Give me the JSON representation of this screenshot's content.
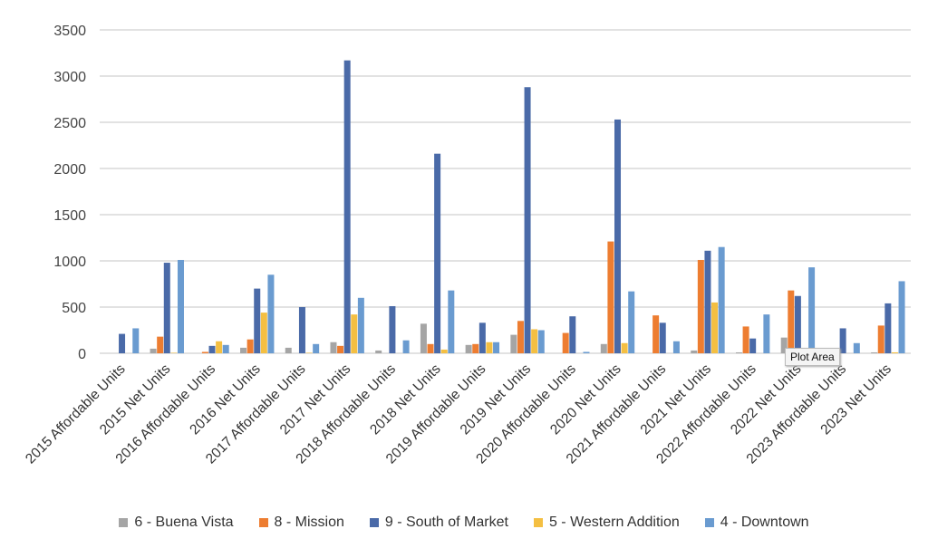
{
  "chart_data": {
    "type": "bar",
    "title": "",
    "xlabel": "",
    "ylabel": "",
    "ylim": [
      0,
      3500
    ],
    "yticks": [
      "0",
      "500",
      "1000",
      "1500",
      "2000",
      "2500",
      "3000",
      "3500"
    ],
    "grid": true,
    "legend_position": "bottom",
    "categories": [
      "2015 Affordable Units",
      "2015 Net Units",
      "2016 Affordable Units",
      "2016 Net Units",
      "2017 Affordable Units",
      "2017 Net Units",
      "2018 Affordable Units",
      "2018 Net Units",
      "2019 Affordable Units",
      "2019 Net Units",
      "2020 Affordable Units",
      "2020 Net Units",
      "2021 Affordable Units",
      "2021 Net Units",
      "2022 Affordable Units",
      "2022 Net Units",
      "2023 Affordable Units",
      "2023 Net Units"
    ],
    "series": [
      {
        "name": "6 - Buena Vista",
        "color": "#a5a5a5",
        "values": [
          0,
          50,
          0,
          60,
          60,
          120,
          30,
          320,
          90,
          200,
          0,
          100,
          0,
          30,
          10,
          170,
          0,
          10
        ]
      },
      {
        "name": "8 - Mission",
        "color": "#ed7d31",
        "values": [
          0,
          180,
          15,
          150,
          0,
          80,
          0,
          100,
          100,
          350,
          220,
          1210,
          410,
          1010,
          290,
          680,
          0,
          300
        ]
      },
      {
        "name": "9 - South of Market",
        "color": "#4a6aa8",
        "values": [
          210,
          980,
          80,
          700,
          500,
          3170,
          510,
          2160,
          330,
          2880,
          400,
          2530,
          330,
          1110,
          160,
          620,
          270,
          540
        ]
      },
      {
        "name": "5 - Western Addition",
        "color": "#f4bf42",
        "values": [
          0,
          5,
          130,
          440,
          5,
          420,
          0,
          40,
          120,
          260,
          0,
          110,
          0,
          550,
          0,
          0,
          0,
          10
        ]
      },
      {
        "name": "4 - Downtown",
        "color": "#6a9bd0",
        "values": [
          270,
          1010,
          90,
          850,
          100,
          600,
          140,
          680,
          120,
          250,
          15,
          670,
          130,
          1150,
          420,
          930,
          110,
          780
        ]
      }
    ]
  },
  "tooltip": "Plot Area"
}
